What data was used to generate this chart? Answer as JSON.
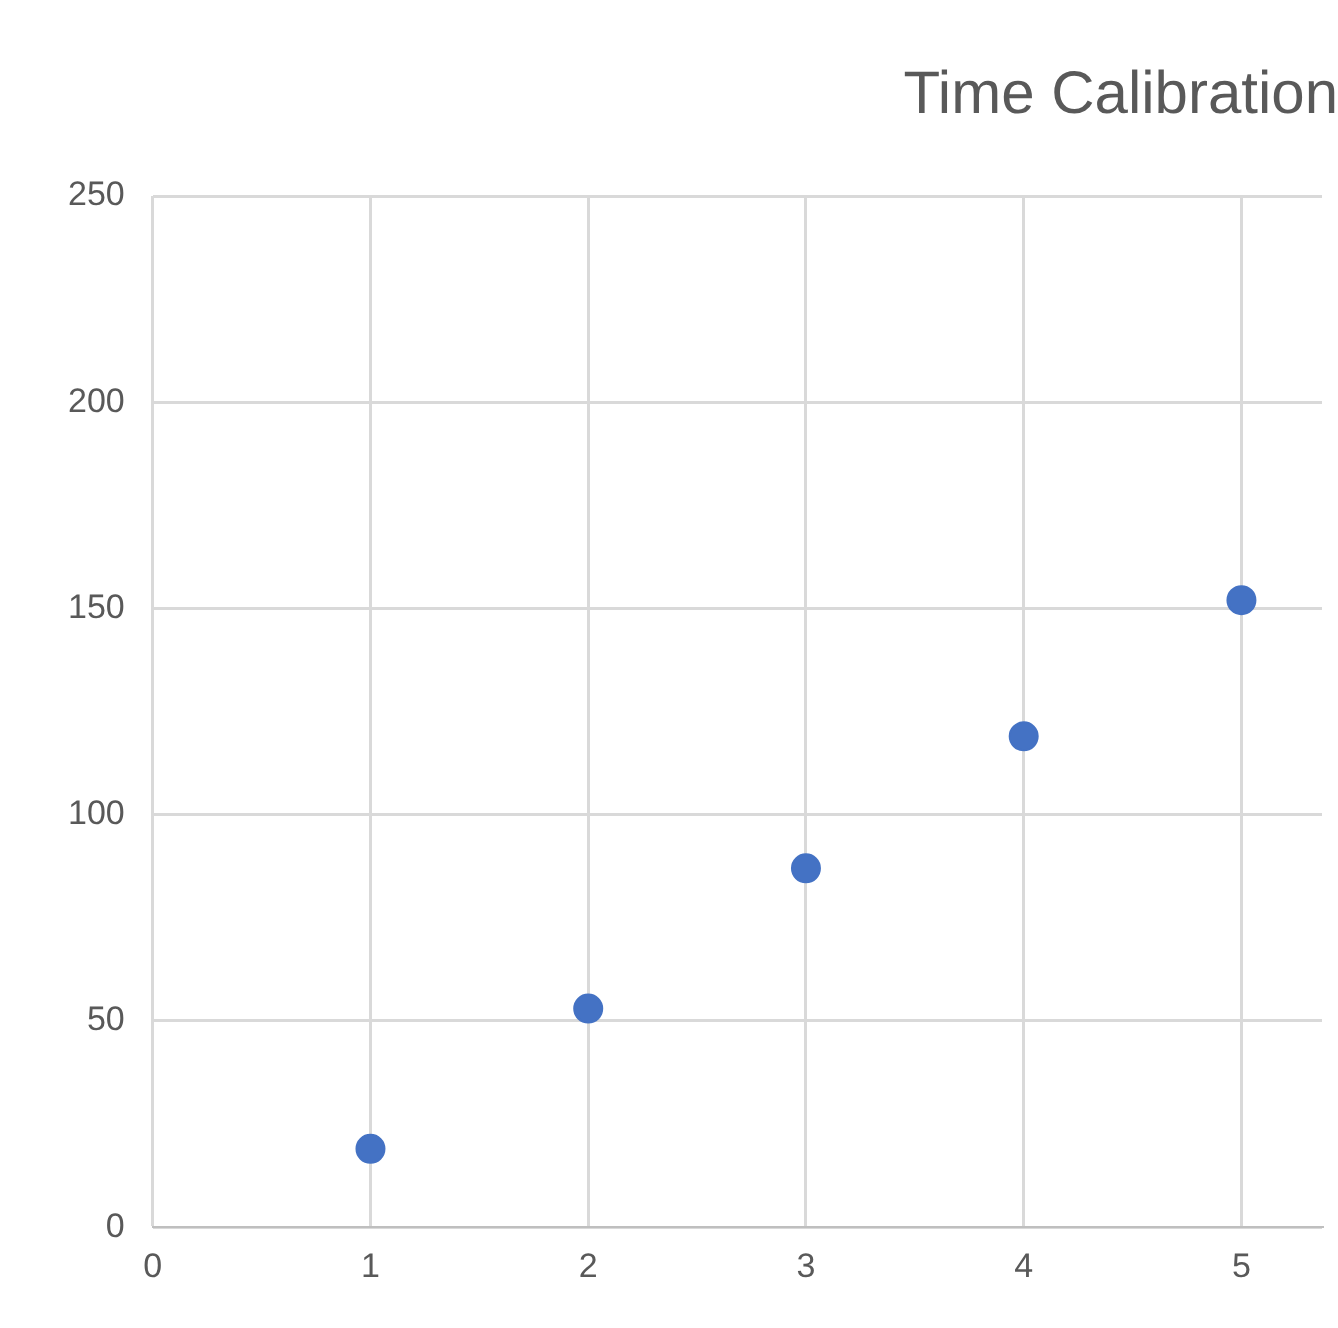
{
  "chart_data": {
    "type": "scatter",
    "title": "Time Calibration",
    "x": [
      1,
      2,
      3,
      4,
      5
    ],
    "series": [
      {
        "color": "#4472c4",
        "values": [
          19,
          53,
          87,
          119,
          152
        ]
      }
    ],
    "xlim": [
      0,
      5.37
    ],
    "xticks": [
      0,
      1,
      2,
      3,
      4,
      5
    ],
    "ylim": [
      0,
      250
    ],
    "yticks": [
      0,
      50,
      100,
      150,
      200,
      250
    ],
    "grid": true,
    "marker": "circle",
    "legend": false
  }
}
